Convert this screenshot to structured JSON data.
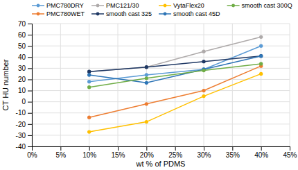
{
  "chart_data": {
    "type": "line",
    "x": [
      0.1,
      0.2,
      0.3,
      0.4
    ],
    "series": [
      {
        "name": "PMC780DRY",
        "color": "#5B9BD5",
        "marker": "circle",
        "line_style": "solid",
        "values": [
          18,
          24,
          29,
          50
        ]
      },
      {
        "name": "PMC780WET",
        "color": "#ED7D31",
        "marker": "circle",
        "line_style": "solid",
        "values": [
          -14,
          -2,
          10,
          32
        ]
      },
      {
        "name": "PMC121/30",
        "color": "#AEAAAA",
        "marker": "circle",
        "line_style": "solid",
        "values": [
          27,
          31,
          45,
          58
        ]
      },
      {
        "name": "smooth cast 325",
        "color": "#1F3864",
        "marker": "circle",
        "line_style": "solid",
        "values": [
          27,
          31,
          36,
          41
        ]
      },
      {
        "name": "VytaFlex20",
        "color": "#FFC000",
        "marker": "circle",
        "line_style": "solid",
        "values": [
          -27,
          -18,
          5,
          25
        ]
      },
      {
        "name": "smooth cast 45D",
        "color": "#2E75B6",
        "marker": "circle",
        "line_style": "solid",
        "values": [
          24,
          17,
          29,
          41
        ]
      },
      {
        "name": "smooth cast 300Q",
        "color": "#70AD47",
        "marker": "circle",
        "line_style": "solid",
        "values": [
          13,
          21,
          28,
          34
        ]
      }
    ],
    "xlabel": "wt % of PDMS",
    "ylabel": "CT HU number",
    "xlim": [
      0.0,
      0.45
    ],
    "ylim": [
      -40,
      70
    ],
    "xticks": [
      {
        "value": 0.0,
        "label": "0%"
      },
      {
        "value": 0.05,
        "label": "5%"
      },
      {
        "value": 0.1,
        "label": "10%"
      },
      {
        "value": 0.15,
        "label": "15%"
      },
      {
        "value": 0.2,
        "label": "20%"
      },
      {
        "value": 0.25,
        "label": "25%"
      },
      {
        "value": 0.3,
        "label": "30%"
      },
      {
        "value": 0.35,
        "label": "35%"
      },
      {
        "value": 0.4,
        "label": "40%"
      },
      {
        "value": 0.45,
        "label": "45%"
      }
    ],
    "yticks": [
      -40,
      -30,
      -20,
      -10,
      0,
      10,
      20,
      30,
      40,
      50,
      60,
      70
    ],
    "grid": true,
    "legend": "upper left"
  }
}
